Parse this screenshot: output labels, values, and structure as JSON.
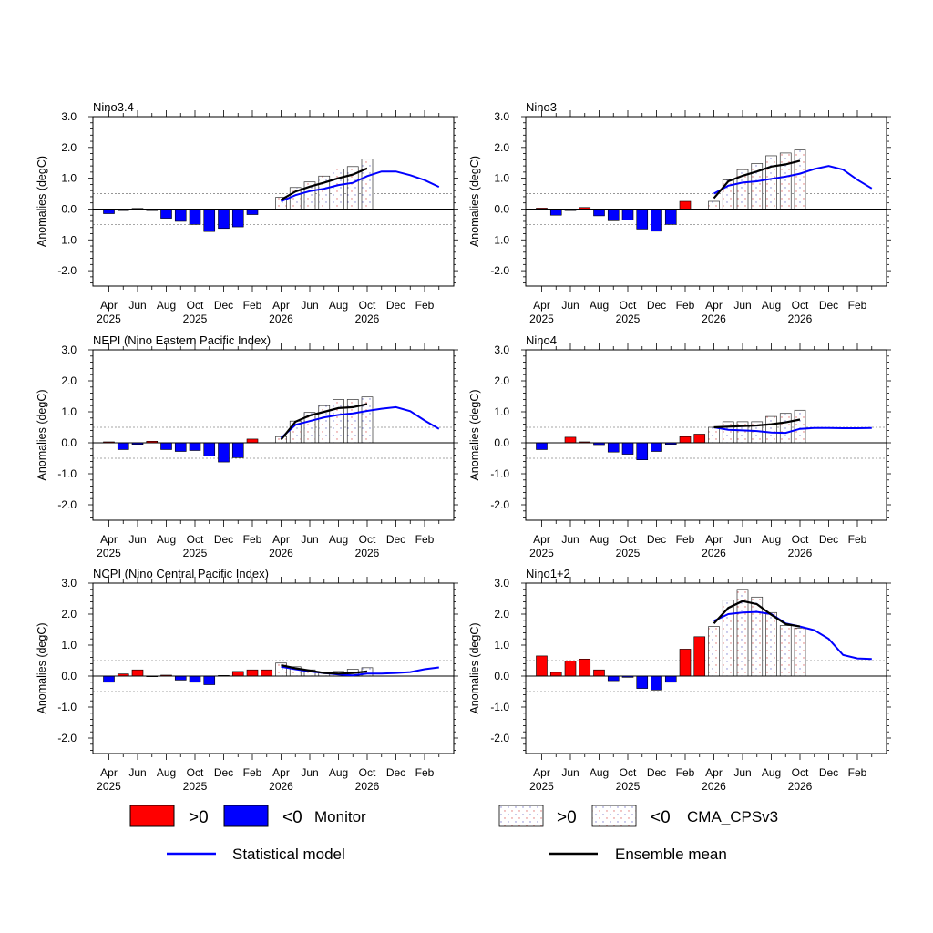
{
  "x_labels": [
    {
      "idx": 0,
      "l1": "Apr",
      "l2": "2025"
    },
    {
      "idx": 2,
      "l1": "Jun",
      "l2": ""
    },
    {
      "idx": 4,
      "l1": "Aug",
      "l2": ""
    },
    {
      "idx": 6,
      "l1": "Oct",
      "l2": "2025"
    },
    {
      "idx": 8,
      "l1": "Dec",
      "l2": ""
    },
    {
      "idx": 10,
      "l1": "Feb",
      "l2": ""
    },
    {
      "idx": 12,
      "l1": "Apr",
      "l2": "2026"
    },
    {
      "idx": 14,
      "l1": "Jun",
      "l2": ""
    },
    {
      "idx": 16,
      "l1": "Aug",
      "l2": ""
    },
    {
      "idx": 18,
      "l1": "Oct",
      "l2": "2026"
    },
    {
      "idx": 20,
      "l1": "Dec",
      "l2": ""
    },
    {
      "idx": 22,
      "l1": "Feb",
      "l2": ""
    }
  ],
  "y_ticks": [
    "-2.0",
    "-1.0",
    "0.0",
    "1.0",
    "2.0",
    "3.0"
  ],
  "legend": {
    "pos_label": ">0",
    "neg_label": "<0",
    "monitor_label": "Monitor",
    "model_label": "CMA_CPSv3",
    "stat_label": "Statistical model",
    "ens_label": "Ensemble mean"
  },
  "colors": {
    "positive": "#ff0000",
    "negative": "#0000ff",
    "statistical": "#0000ff",
    "ensemble": "#000000",
    "forecast_bar_fill": "#ffffff",
    "forecast_dot": "#e07070",
    "threshold_line": "#888888"
  },
  "chart_data": [
    {
      "type": "bar",
      "title": "Nino3.4",
      "ylabel": "Anomalies (degC)",
      "ylim": [
        -2.5,
        3.0
      ],
      "threshold": 0.5,
      "monitor": [
        -0.15,
        -0.05,
        0.02,
        -0.05,
        -0.3,
        -0.4,
        -0.5,
        -0.73,
        -0.63,
        -0.58,
        -0.18,
        -0.02
      ],
      "forecast_bars": [
        0.38,
        0.7,
        0.88,
        1.07,
        1.3,
        1.38,
        1.62
      ],
      "ensemble_mean": [
        0.3,
        0.57,
        0.73,
        0.86,
        1.0,
        1.12,
        1.32
      ],
      "statistical": [
        0.25,
        0.45,
        0.58,
        0.66,
        0.78,
        0.85,
        1.07,
        1.22,
        1.22,
        1.1,
        0.94,
        0.72
      ]
    },
    {
      "type": "bar",
      "title": "Nino3",
      "ylabel": "Anomalies (degC)",
      "ylim": [
        -2.5,
        3.0
      ],
      "threshold": 0.5,
      "monitor": [
        0.03,
        -0.2,
        -0.05,
        0.05,
        -0.22,
        -0.38,
        -0.35,
        -0.65,
        -0.72,
        -0.5,
        0.25,
        0.0
      ],
      "forecast_bars": [
        0.25,
        0.95,
        1.28,
        1.48,
        1.73,
        1.82,
        1.92
      ],
      "ensemble_mean": [
        0.35,
        0.9,
        1.08,
        1.22,
        1.38,
        1.45,
        1.57
      ],
      "statistical": [
        0.5,
        0.76,
        0.86,
        0.9,
        0.98,
        1.05,
        1.15,
        1.3,
        1.4,
        1.28,
        0.95,
        0.67
      ]
    },
    {
      "type": "bar",
      "title": "NEPI (Nino Eastern Pacific Index)",
      "ylabel": "Anomalies (degC)",
      "ylim": [
        -2.5,
        3.0
      ],
      "threshold": 0.5,
      "monitor": [
        0.03,
        -0.22,
        -0.05,
        0.05,
        -0.22,
        -0.28,
        -0.25,
        -0.43,
        -0.62,
        -0.48,
        0.12,
        0.0
      ],
      "forecast_bars": [
        0.2,
        0.7,
        0.98,
        1.2,
        1.4,
        1.4,
        1.48
      ],
      "ensemble_mean": [
        0.1,
        0.68,
        0.88,
        1.0,
        1.12,
        1.15,
        1.25
      ],
      "statistical": [
        0.15,
        0.58,
        0.7,
        0.82,
        0.9,
        0.95,
        1.03,
        1.1,
        1.15,
        1.02,
        0.72,
        0.45
      ]
    },
    {
      "type": "bar",
      "title": "Nino4",
      "ylabel": "Anomalies (degC)",
      "ylim": [
        -2.5,
        3.0
      ],
      "threshold": 0.5,
      "monitor": [
        -0.22,
        0.0,
        0.18,
        0.03,
        -0.06,
        -0.3,
        -0.37,
        -0.55,
        -0.28,
        -0.05,
        0.2,
        0.28
      ],
      "forecast_bars": [
        0.5,
        0.68,
        0.68,
        0.68,
        0.85,
        0.95,
        1.05
      ],
      "ensemble_mean": [
        0.5,
        0.52,
        0.54,
        0.56,
        0.6,
        0.66,
        0.75
      ],
      "statistical": [
        0.5,
        0.42,
        0.4,
        0.38,
        0.33,
        0.32,
        0.45,
        0.48,
        0.48,
        0.47,
        0.47,
        0.48
      ]
    },
    {
      "type": "bar",
      "title": "NCPI (Nino Central Pacific Index)",
      "ylabel": "Anomalies (degC)",
      "ylim": [
        -2.5,
        3.0
      ],
      "threshold": 0.5,
      "monitor": [
        -0.2,
        0.07,
        0.2,
        -0.02,
        0.03,
        -0.13,
        -0.2,
        -0.28,
        0.02,
        0.15,
        0.2,
        0.2
      ],
      "forecast_bars": [
        0.42,
        0.3,
        0.2,
        0.12,
        0.15,
        0.22,
        0.27
      ],
      "ensemble_mean": [
        0.35,
        0.25,
        0.18,
        0.1,
        0.08,
        0.1,
        0.15
      ],
      "statistical": [
        0.3,
        0.22,
        0.15,
        0.1,
        0.05,
        0.02,
        0.08,
        0.08,
        0.1,
        0.13,
        0.22,
        0.28
      ]
    },
    {
      "type": "bar",
      "title": "Nino1+2",
      "ylabel": "Anomalies (degC)",
      "ylim": [
        -2.5,
        3.0
      ],
      "threshold": 0.5,
      "monitor": [
        0.65,
        0.12,
        0.48,
        0.55,
        0.2,
        -0.15,
        -0.04,
        -0.4,
        -0.45,
        -0.2,
        0.87,
        1.27
      ],
      "forecast_bars": [
        1.6,
        2.45,
        2.8,
        2.55,
        2.05,
        1.63,
        1.55
      ],
      "ensemble_mean": [
        1.7,
        2.2,
        2.42,
        2.32,
        1.98,
        1.68,
        1.6
      ],
      "statistical": [
        1.78,
        2.0,
        2.05,
        2.07,
        2.0,
        1.7,
        1.6,
        1.48,
        1.2,
        0.68,
        0.57,
        0.55
      ]
    }
  ]
}
